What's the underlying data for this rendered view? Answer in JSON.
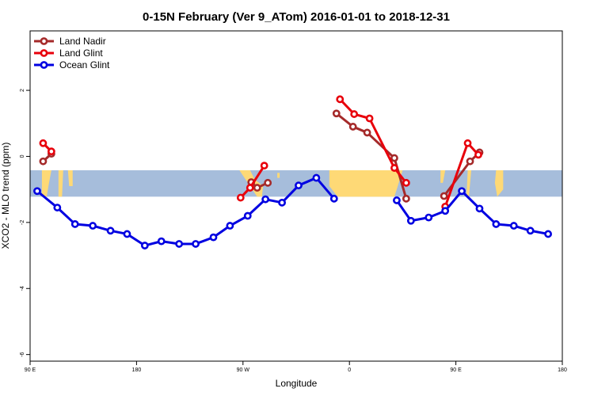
{
  "chart_data": {
    "type": "line",
    "title": "0-15N February (Ver 9_ATom)   2016-01-01 to 2018-12-31",
    "xlabel": "Longitude",
    "ylabel": "XCO2 - MLO trend (ppm)",
    "xlim": [
      90,
      540
    ],
    "ylim": [
      -6.2,
      3.8
    ],
    "x_ticks": [
      {
        "value": 90,
        "label": "90 E"
      },
      {
        "value": 180,
        "label": "180"
      },
      {
        "value": 270,
        "label": "90 W"
      },
      {
        "value": 360,
        "label": "0"
      },
      {
        "value": 450,
        "label": "90 E"
      },
      {
        "value": 540,
        "label": "180"
      }
    ],
    "y_ticks": [
      {
        "value": 2,
        "label": "2"
      },
      {
        "value": 0,
        "label": "0"
      },
      {
        "value": -2,
        "label": "-2"
      },
      {
        "value": -4,
        "label": "-4"
      },
      {
        "value": -6,
        "label": "-6"
      }
    ],
    "band": {
      "lat_range": [
        0,
        15
      ],
      "y_range": [
        -1.22,
        -0.42
      ],
      "ocean_color": "#a6bddb",
      "land_color": "#fed976"
    },
    "land_regions": [
      [
        [
          100,
          -0.42
        ],
        [
          108,
          -0.42
        ],
        [
          106,
          -0.8
        ],
        [
          104,
          -1.22
        ],
        [
          100,
          -1.22
        ]
      ],
      [
        [
          114,
          -0.42
        ],
        [
          118,
          -0.42
        ],
        [
          117,
          -1.22
        ],
        [
          114,
          -1.22
        ]
      ],
      [
        [
          122,
          -0.42
        ],
        [
          126,
          -0.42
        ],
        [
          126,
          -0.9
        ],
        [
          123,
          -0.9
        ]
      ],
      [
        [
          267,
          -0.42
        ],
        [
          276,
          -0.42
        ],
        [
          280,
          -0.7
        ],
        [
          287,
          -0.9
        ],
        [
          286,
          -1.22
        ],
        [
          282,
          -1.22
        ],
        [
          275,
          -0.85
        ]
      ],
      [
        [
          299,
          -0.5
        ],
        [
          301,
          -0.5
        ],
        [
          301,
          -0.65
        ],
        [
          299,
          -0.65
        ]
      ],
      [
        [
          343,
          -0.42
        ],
        [
          405,
          -0.42
        ],
        [
          400,
          -1.0
        ],
        [
          398,
          -1.22
        ],
        [
          350,
          -1.22
        ],
        [
          343,
          -0.9
        ]
      ],
      [
        [
          437,
          -0.42
        ],
        [
          441,
          -0.42
        ],
        [
          439,
          -0.8
        ],
        [
          437,
          -0.8
        ]
      ],
      [
        [
          460,
          -0.42
        ],
        [
          463,
          -0.42
        ],
        [
          461,
          -1.22
        ],
        [
          459,
          -1.22
        ]
      ],
      [
        [
          484,
          -0.42
        ],
        [
          490,
          -0.42
        ],
        [
          490,
          -1.0
        ],
        [
          485,
          -1.22
        ],
        [
          483,
          -0.8
        ]
      ]
    ],
    "series": [
      {
        "name": "Land Nadir",
        "color": "#a52a2a",
        "segments": [
          [
            [
              101,
              -0.15
            ],
            [
              108,
              0.08
            ]
          ],
          [
            [
              277,
              -0.78
            ],
            [
              282,
              -0.95
            ],
            [
              291,
              -0.8
            ]
          ],
          [
            [
              349,
              1.3
            ],
            [
              363,
              0.9
            ],
            [
              375,
              0.72
            ],
            [
              398,
              -0.05
            ],
            [
              408,
              -1.28
            ]
          ],
          [
            [
              440,
              -1.2
            ],
            [
              462,
              -0.15
            ],
            [
              470,
              0.12
            ]
          ]
        ]
      },
      {
        "name": "Land Glint",
        "color": "#e8000b",
        "segments": [
          [
            [
              101,
              0.4
            ],
            [
              108,
              0.15
            ]
          ],
          [
            [
              268,
              -1.25
            ],
            [
              276,
              -0.95
            ],
            [
              288,
              -0.28
            ]
          ],
          [
            [
              352,
              1.73
            ],
            [
              364,
              1.28
            ],
            [
              377,
              1.15
            ],
            [
              398,
              -0.35
            ],
            [
              408,
              -0.8
            ]
          ],
          [
            [
              441,
              -1.52
            ],
            [
              460,
              0.4
            ],
            [
              469,
              0.05
            ]
          ]
        ]
      },
      {
        "name": "Ocean Glint",
        "color": "#0000e1",
        "segments": [
          [
            [
              96,
              -1.05
            ],
            [
              113,
              -1.55
            ],
            [
              128,
              -2.05
            ],
            [
              143,
              -2.1
            ],
            [
              158,
              -2.25
            ],
            [
              172,
              -2.35
            ],
            [
              187,
              -2.7
            ],
            [
              201,
              -2.57
            ],
            [
              216,
              -2.65
            ],
            [
              230,
              -2.65
            ],
            [
              245,
              -2.45
            ],
            [
              259,
              -2.1
            ],
            [
              274,
              -1.8
            ],
            [
              289,
              -1.3
            ],
            [
              303,
              -1.4
            ],
            [
              317,
              -0.88
            ],
            [
              332,
              -0.65
            ],
            [
              347,
              -1.28
            ]
          ],
          [
            [
              400,
              -1.33
            ],
            [
              412,
              -1.95
            ],
            [
              427,
              -1.85
            ],
            [
              441,
              -1.65
            ],
            [
              455,
              -1.05
            ],
            [
              470,
              -1.58
            ],
            [
              484,
              -2.05
            ],
            [
              499,
              -2.1
            ],
            [
              513,
              -2.25
            ],
            [
              528,
              -2.35
            ]
          ]
        ]
      }
    ],
    "legend": {
      "position": "top-left"
    }
  }
}
